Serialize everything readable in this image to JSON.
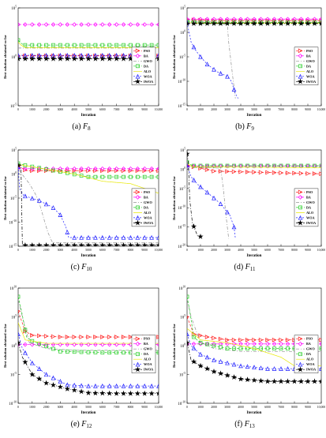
{
  "figure": {
    "colors": {
      "PSO": "#ff2020",
      "BA": "#ff00ff",
      "GWO": "#909090",
      "DA": "#22cc22",
      "ALO": "#e8e800",
      "WOA": "#2020ff",
      "IWOA": "#000000"
    },
    "legend": [
      "PSO",
      "BA",
      "GWO",
      "DA",
      "ALO",
      "WOA",
      "IWOA"
    ]
  },
  "chart_data": [
    {
      "type": "line",
      "id": "a",
      "caption": "(a)",
      "func": "F",
      "func_sub": "8",
      "ylabel": "Best solution obtained so far",
      "xlabel": "Iteration",
      "yscale": "log",
      "ylim_exp": [
        -5,
        5
      ],
      "yticks": [
        {
          "b": "10",
          "e": "5"
        },
        {
          "b": "10",
          "e": "0"
        },
        {
          "b": "10",
          "e": "-5"
        }
      ],
      "xticks": [
        "0",
        "1000",
        "2000",
        "3000",
        "4000",
        "5000",
        "6000",
        "7000",
        "8000",
        "9000",
        "10,000"
      ],
      "xlim": [
        0,
        10000
      ],
      "grid": false,
      "legend_position": "right",
      "series": [
        {
          "name": "PSO",
          "x": [
            0,
            10000
          ],
          "y": [
            0.1,
            0.1
          ]
        },
        {
          "name": "BA",
          "x": [
            0,
            10000
          ],
          "y": [
            3.3,
            3.3
          ]
        },
        {
          "name": "GWO",
          "x": [
            0,
            10000
          ],
          "y": [
            0.9,
            0.9
          ]
        },
        {
          "name": "DA",
          "x": [
            0,
            200,
            400,
            10000
          ],
          "y": [
            1.7,
            1.4,
            1.2,
            1.2
          ]
        },
        {
          "name": "ALO",
          "x": [
            0,
            200,
            500,
            10000
          ],
          "y": [
            1.5,
            1.2,
            0.95,
            0.95
          ]
        },
        {
          "name": "WOA",
          "x": [
            0,
            10000
          ],
          "y": [
            0.15,
            0.15
          ]
        },
        {
          "name": "IWOA",
          "x": [
            0,
            10000
          ],
          "y": [
            -0.2,
            -0.2
          ]
        }
      ]
    },
    {
      "type": "line",
      "id": "b",
      "caption": "(b)",
      "func": "F",
      "func_sub": "9",
      "ylabel": "Best solution obtained so far",
      "xlabel": "Iteration",
      "yscale": "log",
      "ylim_exp": [
        -15,
        5
      ],
      "yticks": [
        {
          "b": "10",
          "e": "5"
        },
        {
          "b": "10",
          "e": "0"
        },
        {
          "b": "10",
          "e": "-5"
        },
        {
          "b": "10",
          "e": "-10"
        },
        {
          "b": "10",
          "e": "-15"
        }
      ],
      "xticks": [
        "0",
        "1000",
        "2000",
        "3000",
        "4000",
        "5000",
        "6000",
        "7000",
        "8000",
        "9000",
        "10,000"
      ],
      "xlim": [
        0,
        10000
      ],
      "grid": false,
      "legend_position": "right",
      "series": [
        {
          "name": "PSO",
          "x": [
            0,
            1000,
            2000,
            10000
          ],
          "y": [
            2.6,
            2.5,
            2.4,
            2.4
          ]
        },
        {
          "name": "BA",
          "x": [
            0,
            10000
          ],
          "y": [
            2.7,
            2.7
          ]
        },
        {
          "name": "GWO",
          "x": [
            0,
            2000,
            3000,
            3100,
            3400,
            3600
          ],
          "y": [
            2.3,
            2.1,
            1.6,
            -2,
            -9,
            -13.5
          ]
        },
        {
          "name": "DA",
          "x": [
            0,
            1000,
            10000
          ],
          "y": [
            2.2,
            2.05,
            2.05
          ]
        },
        {
          "name": "ALO",
          "x": [
            0,
            500,
            10000
          ],
          "y": [
            2.0,
            1.9,
            1.9
          ]
        },
        {
          "name": "WOA",
          "x": [
            0,
            300,
            600,
            1000,
            1500,
            2200,
            3000,
            3300,
            3600,
            3800
          ],
          "y": [
            2.0,
            -2,
            -3.5,
            -5,
            -6.5,
            -8,
            -9,
            -10,
            -12.5,
            -13.5
          ]
        },
        {
          "name": "IWOA",
          "x": [
            0,
            10000
          ],
          "y": [
            1.8,
            1.8
          ]
        }
      ]
    },
    {
      "type": "line",
      "id": "c",
      "caption": "(c)",
      "func": "F",
      "func_sub": "10",
      "ylabel": "Best solution obtained so far",
      "xlabel": "Iteration",
      "yscale": "log",
      "ylim_exp": [
        -15,
        5
      ],
      "yticks": [
        {
          "b": "10",
          "e": "5"
        },
        {
          "b": "10",
          "e": "0"
        },
        {
          "b": "10",
          "e": "-5"
        },
        {
          "b": "10",
          "e": "-10"
        },
        {
          "b": "10",
          "e": "-15"
        }
      ],
      "xticks": [
        "0",
        "1000",
        "2000",
        "3000",
        "4000",
        "5000",
        "6000",
        "7000",
        "8000",
        "9000",
        "10,000"
      ],
      "xlim": [
        0,
        10000
      ],
      "grid": false,
      "legend_position": "right",
      "series": [
        {
          "name": "PSO",
          "x": [
            0,
            300,
            600,
            10000
          ],
          "y": [
            1.6,
            1.2,
            0.7,
            0.7
          ]
        },
        {
          "name": "BA",
          "x": [
            0,
            10000
          ],
          "y": [
            1.1,
            1.1
          ]
        },
        {
          "name": "GWO",
          "x": [
            0,
            800,
            1200,
            1500,
            1800,
            2100,
            2400,
            2600,
            10000
          ],
          "y": [
            1.0,
            -2,
            -4,
            -6,
            -9,
            -12,
            -14,
            -14.3,
            -14.3
          ]
        },
        {
          "name": "DA",
          "x": [
            0,
            500,
            5000,
            7000,
            10000
          ],
          "y": [
            2.2,
            1.8,
            -0.6,
            -0.6,
            -0.6
          ]
        },
        {
          "name": "ALO",
          "x": [
            0,
            4000,
            6000,
            8000,
            10000
          ],
          "y": [
            2.0,
            0,
            -1.5,
            -2.0,
            -4.0
          ]
        },
        {
          "name": "WOA",
          "x": [
            0,
            100,
            400,
            1500,
            2500,
            3000,
            3400,
            3600,
            10000
          ],
          "y": [
            1.5,
            -3,
            -4.5,
            -5.5,
            -7,
            -8.5,
            -11,
            -13.2,
            -13.2
          ]
        },
        {
          "name": "IWOA",
          "x": [
            0,
            200,
            300,
            10000
          ],
          "y": [
            1.8,
            1.8,
            -14.8,
            -14.8
          ]
        }
      ]
    },
    {
      "type": "line",
      "id": "d",
      "caption": "(d)",
      "func": "F",
      "func_sub": "11",
      "ylabel": "Best solution obtained so far",
      "xlabel": "Iteration",
      "yscale": "log",
      "ylim_exp": [
        -20,
        5
      ],
      "yticks": [
        {
          "b": "10",
          "e": "5"
        },
        {
          "b": "10",
          "e": "0"
        },
        {
          "b": "10",
          "e": "-5"
        },
        {
          "b": "10",
          "e": "-10"
        },
        {
          "b": "10",
          "e": "-15"
        },
        {
          "b": "10",
          "e": "-20"
        }
      ],
      "xticks": [
        "0",
        "1000",
        "2000",
        "3000",
        "4000",
        "5000",
        "6000",
        "7000",
        "8000",
        "9000",
        "10,000"
      ],
      "xlim": [
        0,
        10000
      ],
      "grid": false,
      "legend_position": "right",
      "series": [
        {
          "name": "PSO",
          "x": [
            0,
            2000,
            10000
          ],
          "y": [
            1.0,
            -0.5,
            -1.2
          ]
        },
        {
          "name": "BA",
          "x": [
            0,
            10000
          ],
          "y": [
            0.8,
            0.8
          ]
        },
        {
          "name": "GWO",
          "x": [
            0,
            2500,
            2700,
            2900,
            3100
          ],
          "y": [
            0.5,
            0.3,
            -5,
            -12,
            -18
          ]
        },
        {
          "name": "DA",
          "x": [
            0,
            400,
            10000
          ],
          "y": [
            1.8,
            0.9,
            0.9
          ]
        },
        {
          "name": "ALO",
          "x": [
            0,
            400,
            10000
          ],
          "y": [
            1.5,
            0.6,
            0.4
          ]
        },
        {
          "name": "WOA",
          "x": [
            0,
            300,
            800,
            1500,
            2500,
            3200,
            3500,
            3600
          ],
          "y": [
            1.0,
            -2,
            -4,
            -6,
            -9,
            -12,
            -15,
            -18
          ]
        },
        {
          "name": "IWOA",
          "x": [
            0,
            100,
            200,
            400,
            800,
            1000
          ],
          "y": [
            4.0,
            1.5,
            -8,
            -14,
            -17.5,
            -17.5
          ]
        }
      ]
    },
    {
      "type": "line",
      "id": "e",
      "caption": "(e)",
      "func": "F",
      "func_sub": "12",
      "ylabel": "Best solution obtained so far",
      "xlabel": "Iteration",
      "yscale": "log",
      "ylim_exp": [
        -10,
        10
      ],
      "yticks": [
        {
          "b": "10",
          "e": "10"
        },
        {
          "b": "10",
          "e": "5"
        },
        {
          "b": "10",
          "e": "0"
        },
        {
          "b": "10",
          "e": "-5"
        },
        {
          "b": "10",
          "e": "-10"
        }
      ],
      "xticks": [
        "0",
        "1000",
        "2000",
        "3000",
        "4000",
        "5000",
        "6000",
        "7000",
        "8000",
        "9000",
        "10,000"
      ],
      "xlim": [
        0,
        10000
      ],
      "grid": false,
      "legend_position": "right",
      "series": [
        {
          "name": "PSO",
          "x": [
            0,
            500,
            1000,
            3000,
            10000
          ],
          "y": [
            6.0,
            2.5,
            1.8,
            1.5,
            1.5
          ]
        },
        {
          "name": "BA",
          "x": [
            0,
            10000
          ],
          "y": [
            0.2,
            0.2
          ]
        },
        {
          "name": "GWO",
          "x": [
            0,
            300,
            800,
            2000,
            4000,
            10000
          ],
          "y": [
            8.0,
            5.0,
            0.5,
            -0.5,
            -0.8,
            -0.8
          ]
        },
        {
          "name": "DA",
          "x": [
            0,
            200,
            600,
            1000,
            3000,
            6000,
            10000
          ],
          "y": [
            8.5,
            6.5,
            1.5,
            0.8,
            -1.0,
            -1.2,
            -1.2
          ]
        },
        {
          "name": "ALO",
          "x": [
            0,
            500,
            2000,
            10000
          ],
          "y": [
            4.0,
            1.0,
            0.4,
            0.4
          ]
        },
        {
          "name": "WOA",
          "x": [
            0,
            300,
            1000,
            2000,
            3500,
            5000,
            7000,
            10000
          ],
          "y": [
            2.0,
            -0.5,
            -3,
            -5,
            -6.8,
            -7.0,
            -7.0,
            -7.0
          ]
        },
        {
          "name": "IWOA",
          "x": [
            0,
            300,
            1000,
            2000,
            3500,
            5000,
            7000,
            10000
          ],
          "y": [
            0.5,
            -2,
            -5,
            -6.5,
            -7.5,
            -8.2,
            -8.3,
            -8.3
          ]
        }
      ]
    },
    {
      "type": "line",
      "id": "f",
      "caption": "(f)",
      "func": "F",
      "func_sub": "13",
      "ylabel": "Best solution obtained so far",
      "xlabel": "Iteration",
      "yscale": "log",
      "ylim_exp": [
        -10,
        10
      ],
      "yticks": [
        {
          "b": "10",
          "e": "10"
        },
        {
          "b": "10",
          "e": "5"
        },
        {
          "b": "10",
          "e": "0"
        },
        {
          "b": "10",
          "e": "-5"
        },
        {
          "b": "10",
          "e": "-10"
        }
      ],
      "xticks": [
        "0",
        "1000",
        "2000",
        "3000",
        "4000",
        "5000",
        "6000",
        "7000",
        "8000",
        "9000",
        "10,000"
      ],
      "xlim": [
        0,
        10000
      ],
      "grid": false,
      "legend_position": "right",
      "series": [
        {
          "name": "PSO",
          "x": [
            0,
            500,
            1500,
            3000,
            10000
          ],
          "y": [
            5.0,
            2.0,
            1.5,
            1.0,
            1.0
          ]
        },
        {
          "name": "BA",
          "x": [
            0,
            10000
          ],
          "y": [
            0.3,
            0.3
          ]
        },
        {
          "name": "GWO",
          "x": [
            0,
            300,
            1000,
            2000,
            4000,
            10000
          ],
          "y": [
            8.0,
            5.0,
            0.5,
            -0.5,
            -1.0,
            -1.0
          ]
        },
        {
          "name": "DA",
          "x": [
            0,
            200,
            500,
            1000,
            3000,
            6000,
            10000
          ],
          "y": [
            8.5,
            6.0,
            1.5,
            0.5,
            -0.5,
            -0.5,
            -0.5
          ]
        },
        {
          "name": "ALO",
          "x": [
            0,
            1000,
            3000,
            5000,
            7000,
            8000,
            10000
          ],
          "y": [
            3.0,
            1.0,
            0.5,
            -0.5,
            -2.0,
            -3.5,
            -3.5
          ]
        },
        {
          "name": "WOA",
          "x": [
            0,
            300,
            1000,
            2000,
            4000,
            6000,
            10000
          ],
          "y": [
            2.0,
            0,
            -1.5,
            -2.5,
            -3.5,
            -4.0,
            -4.0
          ]
        },
        {
          "name": "IWOA",
          "x": [
            0,
            300,
            1000,
            2000,
            4000,
            6000,
            10000
          ],
          "y": [
            0.5,
            -2.5,
            -3.5,
            -4.5,
            -5.8,
            -6.2,
            -6.2
          ]
        }
      ]
    }
  ]
}
